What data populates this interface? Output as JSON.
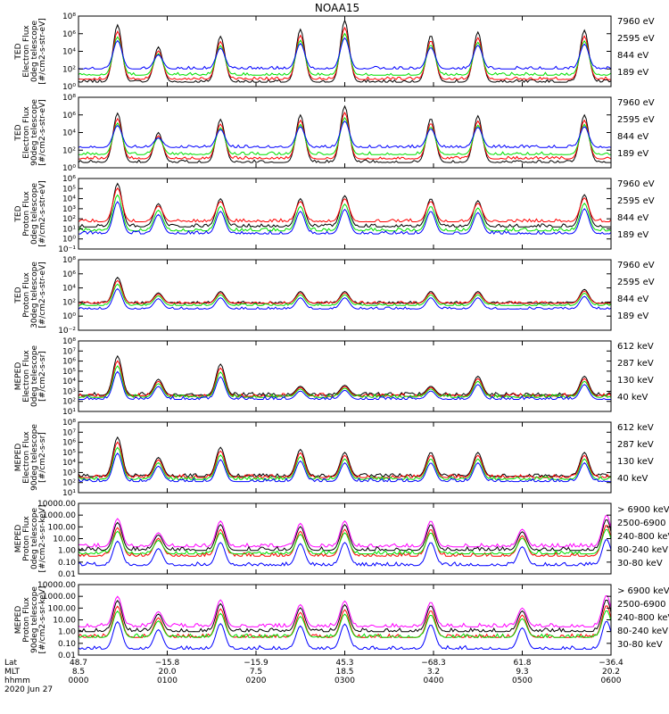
{
  "title": "NOAA15",
  "colors": {
    "black": "#000000",
    "red": "#ff0000",
    "green": "#00e000",
    "blue": "#0000ff",
    "magenta": "#ff00ff"
  },
  "chart_data": [
    {
      "type": "line",
      "name": "ted-electron-0deg",
      "ylabel": [
        "TED",
        "Electron Flux",
        "0deg telescope",
        "[#/cm2-s-str-eV]"
      ],
      "yticks": [
        {
          "label": "10⁰",
          "e": 0
        },
        {
          "label": "10²",
          "e": 2
        },
        {
          "label": "10⁴",
          "e": 4
        },
        {
          "label": "10⁶",
          "e": 6
        },
        {
          "label": "10⁸",
          "e": 8
        }
      ],
      "ylog": [
        0,
        8
      ],
      "legend": [
        {
          "text": "7960 eV",
          "color": "#000000"
        },
        {
          "text": "2595 eV",
          "color": "#ff0000"
        },
        {
          "text": "844 eV",
          "color": "#00e000"
        },
        {
          "text": "189 eV",
          "color": "#0000ff"
        }
      ],
      "base_log": [
        2.0,
        1.3,
        0.8,
        0.5
      ],
      "peaks": [
        {
          "t": 0.44,
          "log": 7.0
        },
        {
          "t": 0.9,
          "log": 4.5
        },
        {
          "t": 1.6,
          "log": 5.7
        },
        {
          "t": 2.5,
          "log": 6.5
        },
        {
          "t": 3.0,
          "log": 7.5
        },
        {
          "t": 3.97,
          "log": 5.8
        },
        {
          "t": 4.5,
          "log": 6.2
        },
        {
          "t": 5.7,
          "log": 6.4
        }
      ]
    },
    {
      "type": "line",
      "name": "ted-electron-90deg",
      "ylabel": [
        "TED",
        "Electron Flux",
        "90deg telescope",
        "[#/cm2-s-str-eV]"
      ],
      "yticks": [
        {
          "label": "10⁰",
          "e": 0
        },
        {
          "label": "10²",
          "e": 2
        },
        {
          "label": "10⁴",
          "e": 4
        },
        {
          "label": "10⁶",
          "e": 6
        },
        {
          "label": "10⁸",
          "e": 8
        }
      ],
      "ylog": [
        0,
        8
      ],
      "legend": [
        {
          "text": "7960 eV",
          "color": "#000000"
        },
        {
          "text": "2595 eV",
          "color": "#ff0000"
        },
        {
          "text": "844 eV",
          "color": "#00e000"
        },
        {
          "text": "189 eV",
          "color": "#0000ff"
        }
      ],
      "base_log": [
        2.3,
        1.5,
        1.0,
        0.6
      ],
      "peaks": [
        {
          "t": 0.44,
          "log": 6.2
        },
        {
          "t": 0.9,
          "log": 4.0
        },
        {
          "t": 1.6,
          "log": 5.5
        },
        {
          "t": 2.5,
          "log": 6.0
        },
        {
          "t": 3.0,
          "log": 7.0
        },
        {
          "t": 3.97,
          "log": 5.6
        },
        {
          "t": 4.5,
          "log": 5.9
        },
        {
          "t": 5.7,
          "log": 6.0
        }
      ]
    },
    {
      "type": "line",
      "name": "ted-proton-0deg",
      "ylabel": [
        "TED",
        "Proton Flux",
        "0deg telescope",
        "[#/cm2-s-str-eV]"
      ],
      "yticks": [
        {
          "label": "10⁻¹",
          "e": -1
        },
        {
          "label": "10⁰",
          "e": 0
        },
        {
          "label": "10¹",
          "e": 1
        },
        {
          "label": "10²",
          "e": 2
        },
        {
          "label": "10³",
          "e": 3
        },
        {
          "label": "10⁴",
          "e": 4
        },
        {
          "label": "10⁵",
          "e": 5
        },
        {
          "label": "10⁶",
          "e": 6
        }
      ],
      "ylog": [
        -1,
        6
      ],
      "legend": [
        {
          "text": "7960 eV",
          "color": "#000000"
        },
        {
          "text": "2595 eV",
          "color": "#ff0000"
        },
        {
          "text": "844 eV",
          "color": "#00e000"
        },
        {
          "text": "189 eV",
          "color": "#0000ff"
        }
      ],
      "base_log": [
        0.5,
        0.8,
        1.7,
        1.2
      ],
      "peaks": [
        {
          "t": 0.44,
          "log": 5.5
        },
        {
          "t": 0.9,
          "log": 3.5
        },
        {
          "t": 1.6,
          "log": 4.0
        },
        {
          "t": 2.5,
          "log": 4.0
        },
        {
          "t": 3.0,
          "log": 4.3
        },
        {
          "t": 3.97,
          "log": 4.0
        },
        {
          "t": 4.5,
          "log": 3.8
        },
        {
          "t": 5.7,
          "log": 4.4
        }
      ]
    },
    {
      "type": "line",
      "name": "ted-proton-30deg",
      "ylabel": [
        "TED",
        "Proton Flux",
        "30deg telescope",
        "[#/cm2-s-str-eV]"
      ],
      "yticks": [
        {
          "label": "10⁻²",
          "e": -2
        },
        {
          "label": "10⁰",
          "e": 0
        },
        {
          "label": "10²",
          "e": 2
        },
        {
          "label": "10⁴",
          "e": 4
        },
        {
          "label": "10⁶",
          "e": 6
        },
        {
          "label": "10⁸",
          "e": 8
        }
      ],
      "ylog": [
        -2,
        8
      ],
      "legend": [
        {
          "text": "7960 eV",
          "color": "#000000"
        },
        {
          "text": "2595 eV",
          "color": "#ff0000"
        },
        {
          "text": "844 eV",
          "color": "#00e000"
        },
        {
          "text": "189 eV",
          "color": "#0000ff"
        }
      ],
      "base_log": [
        1.0,
        1.5,
        1.8,
        1.8
      ],
      "peaks": [
        {
          "t": 0.44,
          "log": 5.5
        },
        {
          "t": 0.9,
          "log": 3.3
        },
        {
          "t": 1.6,
          "log": 3.5
        },
        {
          "t": 2.5,
          "log": 3.5
        },
        {
          "t": 3.0,
          "log": 3.5
        },
        {
          "t": 3.97,
          "log": 3.5
        },
        {
          "t": 4.5,
          "log": 3.5
        },
        {
          "t": 5.7,
          "log": 3.8
        }
      ]
    },
    {
      "type": "line",
      "name": "meped-electron-0deg",
      "ylabel": [
        "MEPED",
        "Electron Flux",
        "0deg telescope",
        "[#/cm2-s-sr]"
      ],
      "yticks": [
        {
          "label": "10¹",
          "e": 1
        },
        {
          "label": "10²",
          "e": 2
        },
        {
          "label": "10³",
          "e": 3
        },
        {
          "label": "10⁴",
          "e": 4
        },
        {
          "label": "10⁵",
          "e": 5
        },
        {
          "label": "10⁶",
          "e": 6
        },
        {
          "label": "10⁷",
          "e": 7
        },
        {
          "label": "10⁸",
          "e": 8
        }
      ],
      "ylog": [
        1,
        8
      ],
      "legend": [
        {
          "text": "612 keV",
          "color": "#000000"
        },
        {
          "text": "287 keV",
          "color": "#ff0000"
        },
        {
          "text": "130 keV",
          "color": "#00e000"
        },
        {
          "text": "40 keV",
          "color": "#0000ff"
        }
      ],
      "base_log": [
        2.2,
        2.4,
        2.5,
        2.6
      ],
      "peaks": [
        {
          "t": 0.44,
          "log": 6.5
        },
        {
          "t": 0.9,
          "log": 4.2
        },
        {
          "t": 1.6,
          "log": 5.7
        },
        {
          "t": 2.5,
          "log": 3.5
        },
        {
          "t": 3.0,
          "log": 3.6
        },
        {
          "t": 3.97,
          "log": 3.5
        },
        {
          "t": 4.5,
          "log": 4.5
        },
        {
          "t": 5.7,
          "log": 4.5
        }
      ]
    },
    {
      "type": "line",
      "name": "meped-electron-90deg",
      "ylabel": [
        "MEPED",
        "Electron Flux",
        "90deg telescope",
        "[#/cm2-s-sr]"
      ],
      "yticks": [
        {
          "label": "10¹",
          "e": 1
        },
        {
          "label": "10²",
          "e": 2
        },
        {
          "label": "10³",
          "e": 3
        },
        {
          "label": "10⁴",
          "e": 4
        },
        {
          "label": "10⁵",
          "e": 5
        },
        {
          "label": "10⁶",
          "e": 6
        },
        {
          "label": "10⁷",
          "e": 7
        },
        {
          "label": "10⁸",
          "e": 8
        }
      ],
      "ylog": [
        1,
        8
      ],
      "legend": [
        {
          "text": "612 keV",
          "color": "#000000"
        },
        {
          "text": "287 keV",
          "color": "#ff0000"
        },
        {
          "text": "130 keV",
          "color": "#00e000"
        },
        {
          "text": "40 keV",
          "color": "#0000ff"
        }
      ],
      "base_log": [
        2.1,
        2.3,
        2.5,
        2.6
      ],
      "peaks": [
        {
          "t": 0.44,
          "log": 6.5
        },
        {
          "t": 0.9,
          "log": 4.5
        },
        {
          "t": 1.6,
          "log": 5.5
        },
        {
          "t": 2.5,
          "log": 5.3
        },
        {
          "t": 3.0,
          "log": 5.0
        },
        {
          "t": 3.97,
          "log": 5.0
        },
        {
          "t": 4.5,
          "log": 5.0
        },
        {
          "t": 5.7,
          "log": 5.0
        }
      ]
    },
    {
      "type": "line",
      "name": "meped-proton-0deg",
      "ylabel": [
        "MEPED",
        "Proton Flux",
        "0deg telescope",
        "[#/cm2-s-sr-keV]"
      ],
      "yticks": [
        {
          "label": "0.01",
          "e": -2
        },
        {
          "label": "0.10",
          "e": -1
        },
        {
          "label": "1.00",
          "e": 0
        },
        {
          "label": "10.00",
          "e": 1
        },
        {
          "label": "100.00",
          "e": 2
        },
        {
          "label": "1000.00",
          "e": 3
        },
        {
          "label": "10000.00",
          "e": 4
        }
      ],
      "ylog": [
        -2,
        4
      ],
      "legend": [
        {
          "text": "> 6900 keV",
          "color": "#ff00ff"
        },
        {
          "text": "2500-6900",
          "color": "#000000"
        },
        {
          "text": "240-800 keV",
          "color": "#ff0000"
        },
        {
          "text": "80-240 keV",
          "color": "#00e000"
        },
        {
          "text": "30-80 keV",
          "color": "#0000ff"
        }
      ],
      "base_log": [
        -1.3,
        -0.3,
        -0.5,
        0.0,
        0.3
      ],
      "peaks": [
        {
          "t": 0.44,
          "log": 2.7
        },
        {
          "t": 0.9,
          "log": 1.5
        },
        {
          "t": 1.6,
          "log": 2.5
        },
        {
          "t": 2.5,
          "log": 2.3
        },
        {
          "t": 3.0,
          "log": 2.5
        },
        {
          "t": 3.97,
          "log": 2.5
        },
        {
          "t": 5.0,
          "log": 1.8
        },
        {
          "t": 5.95,
          "log": 3.0
        }
      ]
    },
    {
      "type": "line",
      "name": "meped-proton-90deg",
      "ylabel": [
        "MEPED",
        "Proton Flux",
        "90deg telescope",
        "[#/cm2-s-sr-keV]"
      ],
      "yticks": [
        {
          "label": "0.01",
          "e": -2
        },
        {
          "label": "0.10",
          "e": -1
        },
        {
          "label": "1.00",
          "e": 0
        },
        {
          "label": "10.00",
          "e": 1
        },
        {
          "label": "100.00",
          "e": 2
        },
        {
          "label": "1000.00",
          "e": 3
        },
        {
          "label": "10000.00",
          "e": 4
        }
      ],
      "ylog": [
        -2,
        4
      ],
      "legend": [
        {
          "text": "> 6900 keV",
          "color": "#ff00ff"
        },
        {
          "text": "2500-6900",
          "color": "#000000"
        },
        {
          "text": "240-800 keV",
          "color": "#ff0000"
        },
        {
          "text": "80-240 keV",
          "color": "#00e000"
        },
        {
          "text": "30-80 keV",
          "color": "#0000ff"
        }
      ],
      "base_log": [
        -1.5,
        -0.5,
        -0.5,
        0.0,
        0.4
      ],
      "peaks": [
        {
          "t": 0.44,
          "log": 3.0
        },
        {
          "t": 0.9,
          "log": 1.7
        },
        {
          "t": 1.6,
          "log": 2.7
        },
        {
          "t": 2.5,
          "log": 2.3
        },
        {
          "t": 3.0,
          "log": 2.6
        },
        {
          "t": 3.97,
          "log": 2.5
        },
        {
          "t": 5.0,
          "log": 2.0
        },
        {
          "t": 5.95,
          "log": 3.1
        }
      ]
    }
  ],
  "xaxis": {
    "row_labels": [
      "Lat",
      "MLT",
      "hhmm",
      "2020 Jun 27"
    ],
    "ticks": [
      {
        "t": 0,
        "lat": "48.7",
        "mlt": "8.5",
        "hhmm": "0000"
      },
      {
        "t": 1,
        "lat": "−15.8",
        "mlt": "20.0",
        "hhmm": "0100"
      },
      {
        "t": 2,
        "lat": "−15.9",
        "mlt": "7.5",
        "hhmm": "0200"
      },
      {
        "t": 3,
        "lat": "45.3",
        "mlt": "18.5",
        "hhmm": "0300"
      },
      {
        "t": 4,
        "lat": "−68.3",
        "mlt": "3.2",
        "hhmm": "0400"
      },
      {
        "t": 5,
        "lat": "61.8",
        "mlt": "9.3",
        "hhmm": "0500"
      },
      {
        "t": 6,
        "lat": "−36.4",
        "mlt": "20.2",
        "hhmm": "0600"
      }
    ],
    "range": [
      0,
      6
    ]
  }
}
